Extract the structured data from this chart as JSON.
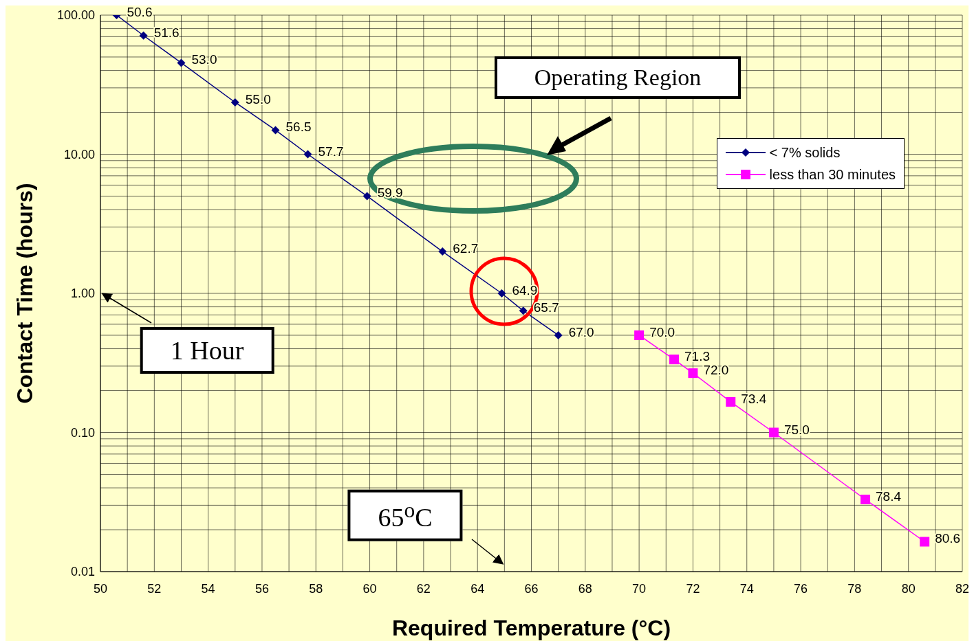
{
  "chart_data": {
    "type": "line",
    "xlabel": "Required Temperature (°C)",
    "ylabel": "Contact Time (hours)",
    "log": "y",
    "grid": true,
    "legend": "top right",
    "line_style": "solid",
    "xlim": [
      50,
      82
    ],
    "xticks": [
      50,
      52,
      54,
      56,
      58,
      60,
      62,
      64,
      66,
      68,
      70,
      72,
      74,
      76,
      78,
      80,
      82
    ],
    "ylim": [
      0.01,
      100
    ],
    "yticks": [
      {
        "value": 0.01,
        "label": "0.01"
      },
      {
        "value": 0.1,
        "label": "0.10"
      },
      {
        "value": 1,
        "label": "1.00"
      },
      {
        "value": 10,
        "label": "10.00"
      },
      {
        "value": 100,
        "label": "100.00"
      }
    ],
    "series": [
      {
        "name": "< 7% solids",
        "color": "#000080",
        "marker": "diamond",
        "x": [
          50.6,
          51.6,
          53.0,
          55.0,
          56.5,
          57.7,
          59.9,
          62.7,
          64.9,
          65.7,
          67.0
        ],
        "values": [
          100,
          71.3,
          45.4,
          23.6,
          14.9,
          10,
          5,
          2,
          1,
          0.75,
          0.5
        ]
      },
      {
        "name": "less than 30 minutes",
        "color": "#ff00ff",
        "marker": "square",
        "x": [
          70.0,
          71.3,
          72.0,
          73.4,
          75.0,
          78.4,
          80.6
        ],
        "values": [
          0.5,
          0.335,
          0.267,
          0.166,
          0.1,
          0.033,
          0.0164
        ]
      }
    ],
    "annotations": [
      "Operating Region",
      "1 Hour",
      "65$^{o}$C",
      {
        "text": "50.6",
        "x": 50.6,
        "y": 100
      },
      {
        "text": "51.6",
        "x": 51.6,
        "y": 71.3
      },
      {
        "text": "53.0",
        "x": 53.0,
        "y": 45.4
      },
      {
        "text": "55.0",
        "x": 55.0,
        "y": 23.6
      },
      {
        "text": "56.5",
        "x": 56.5,
        "y": 14.9
      },
      {
        "text": "57.7",
        "x": 57.7,
        "y": 10
      },
      {
        "text": "59.9",
        "x": 59.9,
        "y": 5
      },
      {
        "text": "62.7",
        "x": 62.7,
        "y": 2
      },
      {
        "text": "64.9",
        "x": 64.9,
        "y": 1
      },
      {
        "text": "65.7",
        "x": 65.7,
        "y": 0.75
      },
      {
        "text": "67.0",
        "x": 67.0,
        "y": 0.5
      },
      {
        "text": "70.0",
        "x": 70.0,
        "y": 0.5
      },
      {
        "text": "71.3",
        "x": 71.3,
        "y": 0.335
      },
      {
        "text": "72.0",
        "x": 72.0,
        "y": 0.267
      },
      {
        "text": "73.4",
        "x": 73.4,
        "y": 0.166
      },
      {
        "text": "75.0",
        "x": 75.0,
        "y": 0.1
      },
      {
        "text": "78.4",
        "x": 78.4,
        "y": 0.033
      },
      {
        "text": "80.6",
        "x": 80.6,
        "y": 0.0164
      }
    ]
  }
}
